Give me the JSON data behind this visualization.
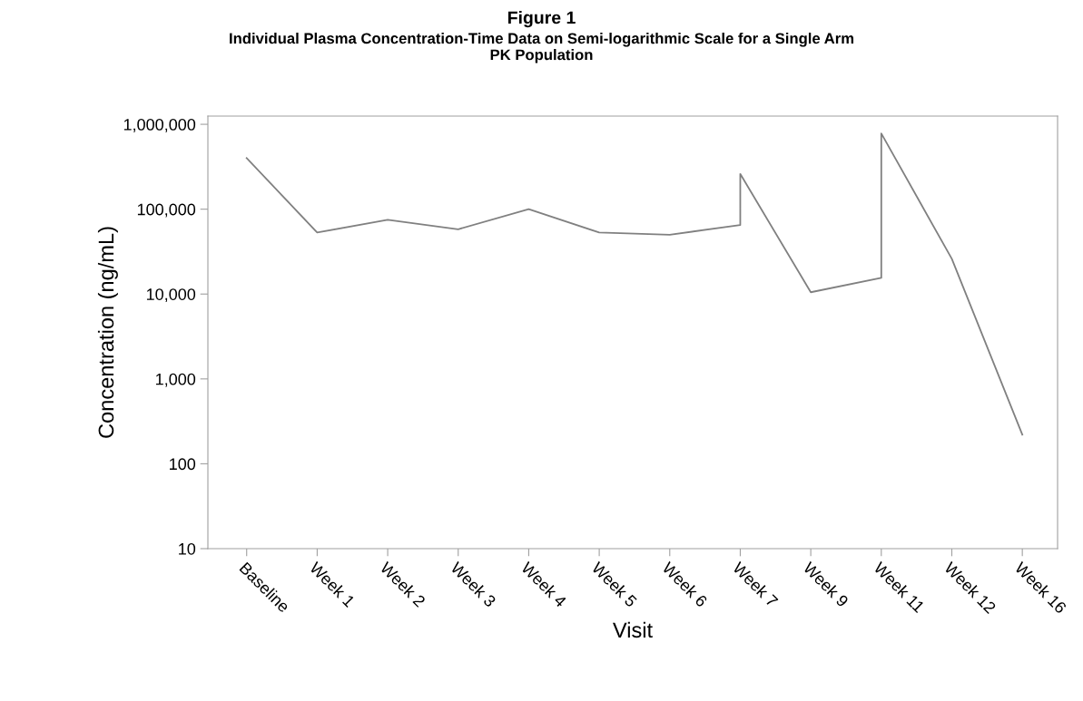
{
  "chart_data": {
    "type": "line",
    "title": "Figure 1",
    "subtitle": "Individual Plasma Concentration-Time Data on Semi-logarithmic Scale for a Single Arm\nPK Population",
    "xlabel": "Visit",
    "ylabel": "Concentration (ng/mL)",
    "categories": [
      "Baseline",
      "Week 1",
      "Week 2",
      "Week 3",
      "Week 4",
      "Week 5",
      "Week 6",
      "Week 7",
      "Week 9",
      "Week 11",
      "Week 12",
      "Week 16"
    ],
    "series": [
      {
        "color": "#808080",
        "x": [
          "Baseline",
          "Week 1",
          "Week 2",
          "Week 3",
          "Week 4",
          "Week 5",
          "Week 6",
          "Week 7",
          "Week 7",
          "Week 9",
          "Week 11",
          "Week 11",
          "Week 12",
          "Week 16"
        ],
        "values": [
          400000,
          53000,
          75000,
          58000,
          100000,
          53000,
          50000,
          65000,
          260000,
          10500,
          15500,
          780000,
          26000,
          220
        ]
      }
    ],
    "log": "y",
    "ylim": [
      10,
      1250000
    ],
    "yticks": [
      10,
      100,
      {
        "value": 1000,
        "label": "1,000"
      },
      {
        "value": 10000,
        "label": "10,000"
      },
      {
        "value": 100000,
        "label": "100,000"
      },
      {
        "value": 1000000,
        "label": "1,000,000"
      }
    ],
    "grid": false,
    "marker": "none",
    "line_style": "solid"
  }
}
